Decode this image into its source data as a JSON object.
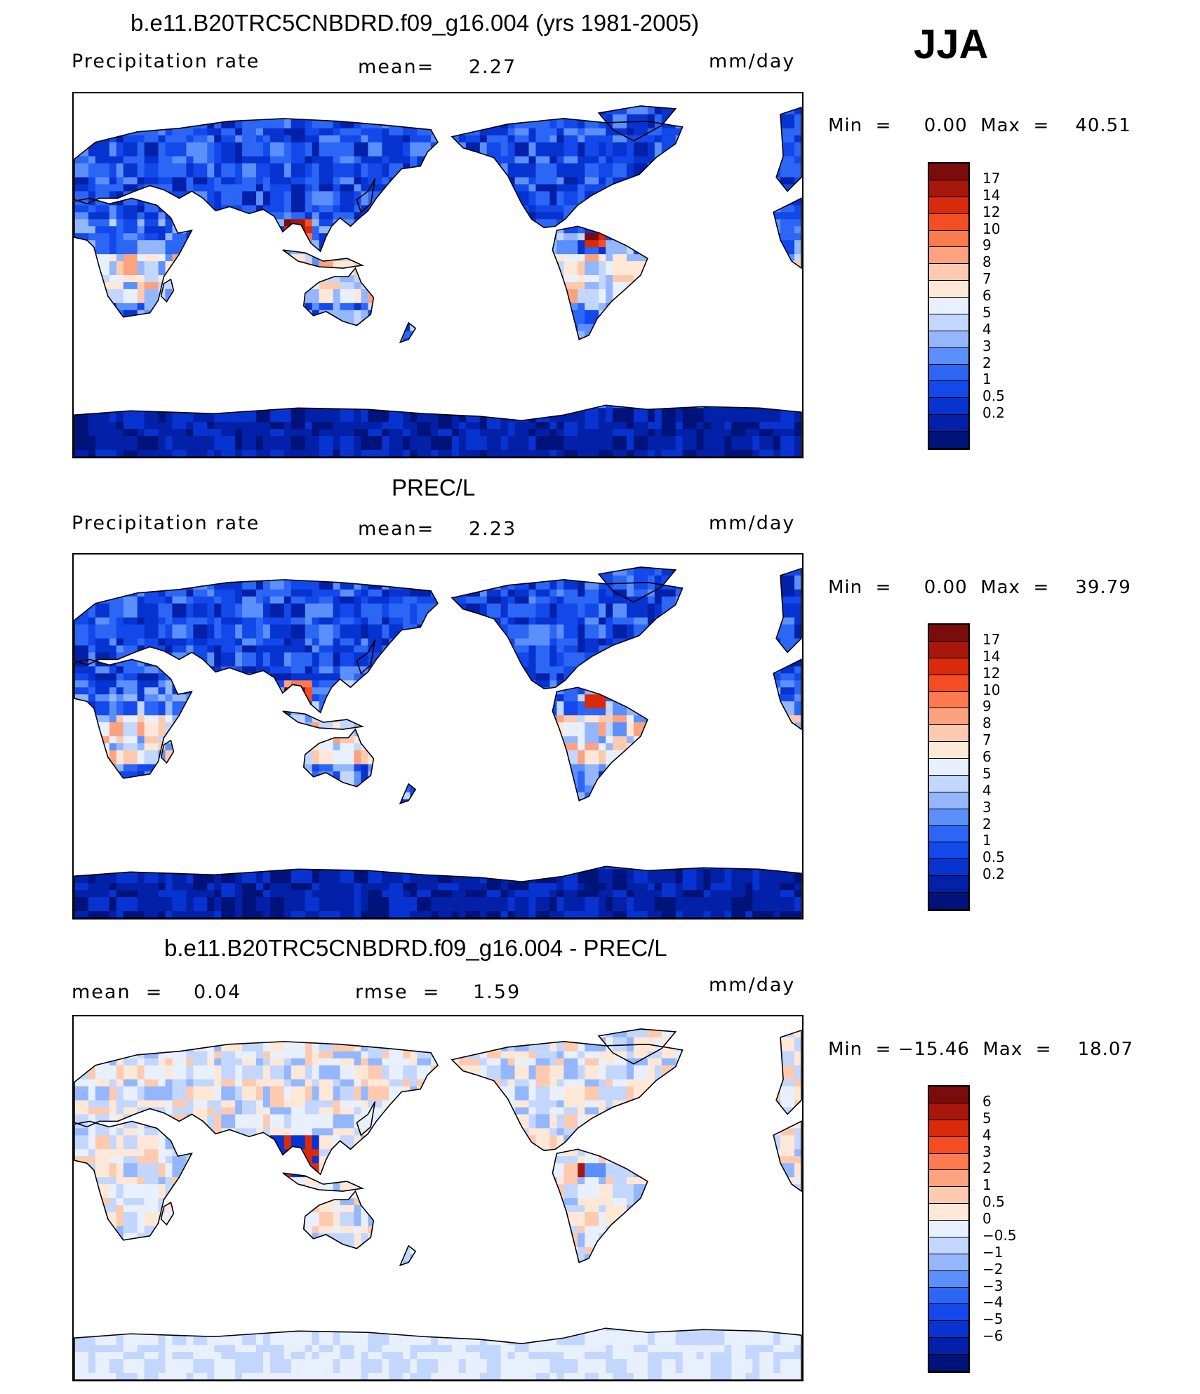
{
  "season": "JJA",
  "colors": {
    "precip_scale": [
      "#00137a",
      "#0221a8",
      "#0733d0",
      "#1348ea",
      "#2c66f5",
      "#5b8ffb",
      "#94b6fc",
      "#c3d6fd",
      "#e8f0fe",
      "#fde8d8",
      "#fdcab0",
      "#fca27f",
      "#fb7a4f",
      "#f54d23",
      "#d92b0c",
      "#a8180a",
      "#7b0c0c"
    ],
    "diff_scale": [
      "#00137a",
      "#0221a8",
      "#0733d0",
      "#1348ea",
      "#2c66f5",
      "#5b8ffb",
      "#94b6fc",
      "#c3d6fd",
      "#e8f0fe",
      "#fde8d8",
      "#fdcab0",
      "#fca27f",
      "#fb7a4f",
      "#f54d23",
      "#d92b0c",
      "#a8180a",
      "#7b0c0c"
    ],
    "coast": "#000000"
  },
  "panels": [
    {
      "title": "b.e11.B20TRC5CNBDRD.f09_g16.004 (yrs 1981-2005)",
      "left_label": "Precipitation  rate",
      "mid_label": "mean=",
      "mid_value": "2.27",
      "units": "mm/day",
      "minmax": "Min  =     0.00  Max  =    40.51",
      "cbar_labels": [
        "17",
        "14",
        "12",
        "10",
        "9",
        "8",
        "7",
        "6",
        "5",
        "4",
        "3",
        "2",
        "1",
        "0.5",
        "0.2"
      ],
      "field": "model"
    },
    {
      "title": "PREC/L",
      "left_label": "Precipitation  rate",
      "mid_label": "mean=",
      "mid_value": "2.23",
      "units": "mm/day",
      "minmax": "Min  =     0.00  Max  =    39.79",
      "cbar_labels": [
        "17",
        "14",
        "12",
        "10",
        "9",
        "8",
        "7",
        "6",
        "5",
        "4",
        "3",
        "2",
        "1",
        "0.5",
        "0.2"
      ],
      "field": "obs"
    },
    {
      "title": "b.e11.B20TRC5CNBDRD.f09_g16.004 - PREC/L",
      "left_label": "mean  =",
      "left_value": "0.04",
      "mid_label": "rmse  =",
      "mid_value": "1.59",
      "units": "mm/day",
      "minmax": "Min  = −15.46  Max  =    18.07",
      "cbar_labels": [
        "6",
        "5",
        "4",
        "3",
        "2",
        "1",
        "0.5",
        "0",
        "−0.5",
        "−1",
        "−2",
        "−3",
        "−4",
        "−5",
        "−6"
      ],
      "field": "diff"
    }
  ],
  "chart_data": [
    {
      "type": "heatmap",
      "title": "b.e11.B20TRC5CNBDRD.f09_g16.004 (yrs 1981-2005)",
      "variable": "Precipitation  rate",
      "units": "mm/day",
      "mean": 2.27,
      "min": 0.0,
      "max": 40.51,
      "contour_levels": [
        0.2,
        0.5,
        1,
        2,
        3,
        4,
        5,
        6,
        7,
        8,
        9,
        10,
        12,
        14,
        17
      ],
      "colormap": "blue-white-red"
    },
    {
      "type": "heatmap",
      "title": "PREC/L",
      "variable": "Precipitation  rate",
      "units": "mm/day",
      "mean": 2.23,
      "min": 0.0,
      "max": 39.79,
      "contour_levels": [
        0.2,
        0.5,
        1,
        2,
        3,
        4,
        5,
        6,
        7,
        8,
        9,
        10,
        12,
        14,
        17
      ],
      "colormap": "blue-white-red"
    },
    {
      "type": "heatmap",
      "title": "b.e11.B20TRC5CNBDRD.f09_g16.004 - PREC/L",
      "units": "mm/day",
      "mean": 0.04,
      "rmse": 1.59,
      "min": -15.46,
      "max": 18.07,
      "contour_levels": [
        -6,
        -5,
        -4,
        -3,
        -2,
        -1,
        -0.5,
        0,
        0.5,
        1,
        2,
        3,
        4,
        5,
        6
      ],
      "colormap": "blue-white-red"
    }
  ]
}
